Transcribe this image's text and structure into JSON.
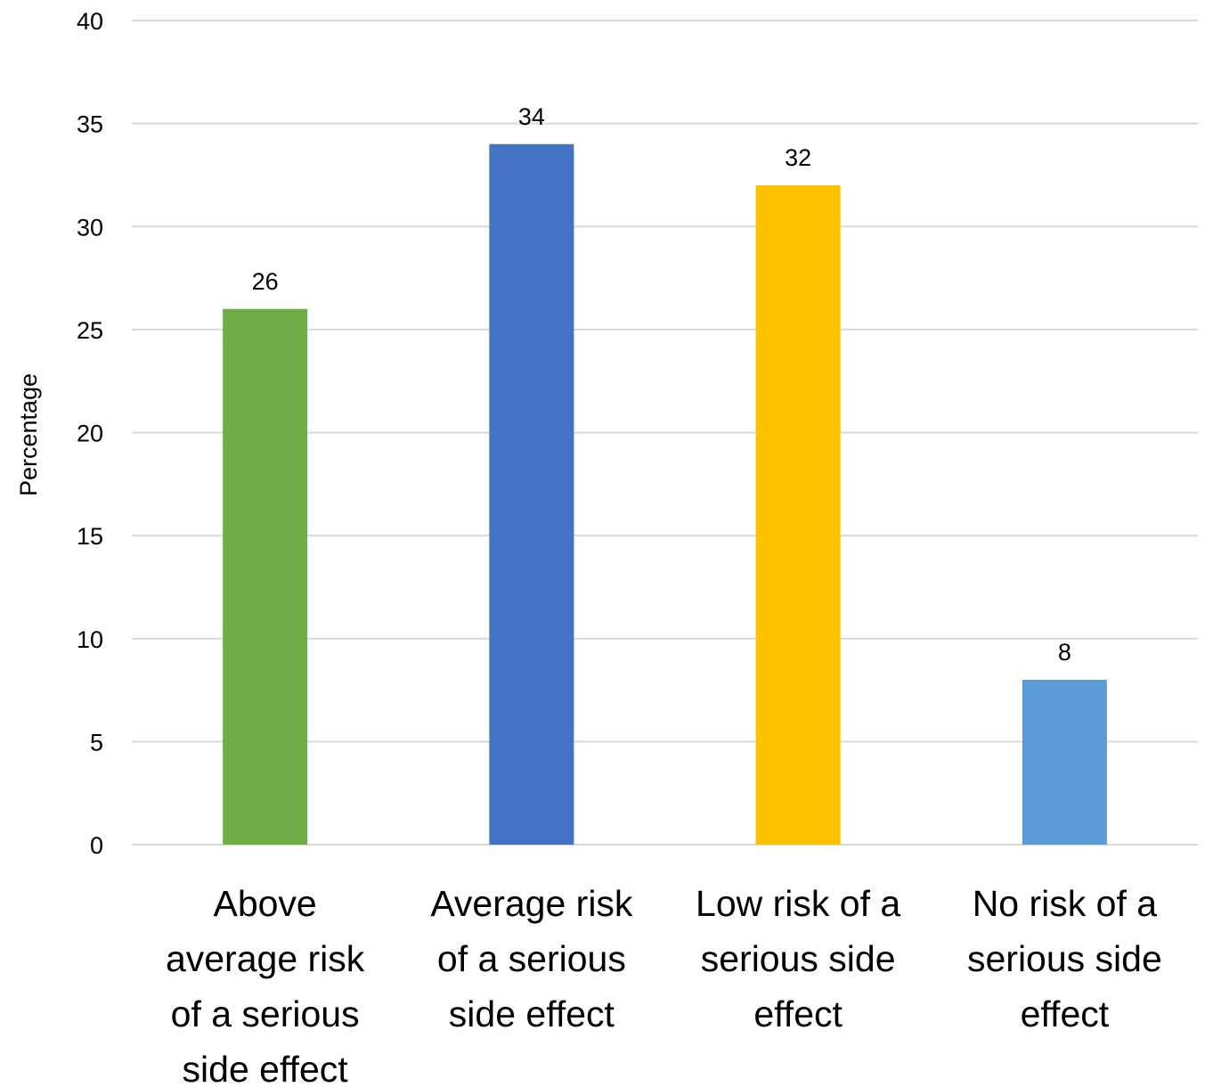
{
  "chart_data": {
    "type": "bar",
    "title": "",
    "xlabel": "",
    "ylabel": "Percentage",
    "ylim": [
      0,
      40
    ],
    "yticks": [
      0,
      5,
      10,
      15,
      20,
      25,
      30,
      35,
      40
    ],
    "grid": true,
    "legend": "none",
    "categories": [
      "Above average risk of a serious side effect",
      "Average risk of a serious side effect",
      "Low risk of a serious side effect",
      "No risk of a serious side effect"
    ],
    "category_lines": [
      [
        "Above",
        "average risk",
        "of a serious",
        "side effect"
      ],
      [
        "Average risk",
        "of a serious",
        "side effect"
      ],
      [
        "Low risk of a",
        "serious side",
        "effect"
      ],
      [
        "No risk of a",
        "serious side",
        "effect"
      ]
    ],
    "values": [
      26,
      34,
      32,
      8
    ],
    "data_labels": [
      "26",
      "34",
      "32",
      "8"
    ],
    "colors": [
      "#70ad47",
      "#4472c4",
      "#ffc000",
      "#5b9bd5"
    ]
  }
}
